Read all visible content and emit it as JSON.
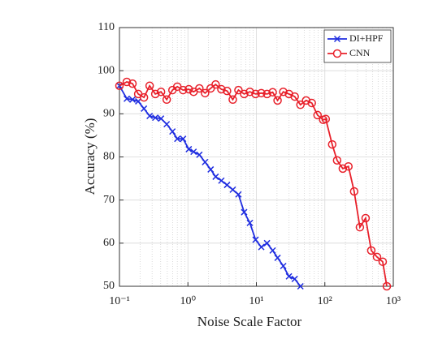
{
  "chart_data": {
    "type": "line",
    "xlabel": "Noise Scale Factor",
    "ylabel": "Accuracy (%)",
    "log_x": true,
    "grid": true,
    "legend": "upper right",
    "xlim": [
      0.1,
      1000
    ],
    "xticks": [
      {
        "value": 0.1,
        "label": "10⁻¹"
      },
      {
        "value": 1,
        "label": "10⁰"
      },
      {
        "value": 10,
        "label": "10¹"
      },
      {
        "value": 100,
        "label": "10²"
      },
      {
        "value": 1000,
        "label": "10³"
      }
    ],
    "ylim": [
      50,
      110
    ],
    "yticks": [
      50,
      60,
      70,
      80,
      90,
      100,
      110
    ],
    "x": [
      0.1,
      0.128,
      0.155,
      0.188,
      0.228,
      0.276,
      0.334,
      0.405,
      0.49,
      0.594,
      0.7,
      0.85,
      1.03,
      1.21,
      1.47,
      1.78,
      2.15,
      2.54,
      3.08,
      3.73,
      4.52,
      5.47,
      6.63,
      8.03,
      9.73,
      11.8,
      14.3,
      17.3,
      20.4,
      24.7,
      29.9,
      36.3,
      44,
      53.3,
      64.5,
      78.2,
      94.7,
      103,
      128,
      151,
      183,
      221,
      268,
      325,
      394,
      477,
      578,
      700,
      804
    ],
    "series": [
      {
        "name": "DI+HPF",
        "color": "#1f2de0",
        "marker": "x",
        "values": [
          96.5,
          93.5,
          93.3,
          92.9,
          91.2,
          89.5,
          89.1,
          88.9,
          87.6,
          85.9,
          84.2,
          84.2,
          81.8,
          81.2,
          80.5,
          78.8,
          77.1,
          75.4,
          74.5,
          73.5,
          72.4,
          71.3,
          67.2,
          64.7,
          60.8,
          59.1,
          60.0,
          58.3,
          56.6,
          54.7,
          52.3,
          51.7,
          50,
          null,
          null,
          null,
          null,
          null,
          null,
          null,
          null,
          null,
          null,
          null,
          null,
          null,
          null,
          null,
          null
        ]
      },
      {
        "name": "CNN",
        "color": "#e8202a",
        "marker": "o",
        "values": [
          96.5,
          97.4,
          97.0,
          94.6,
          93.8,
          96.5,
          94.6,
          95.1,
          93.3,
          95.5,
          96.3,
          95.5,
          95.7,
          95.1,
          95.9,
          94.8,
          95.9,
          96.8,
          95.7,
          95.3,
          93.3,
          95.5,
          94.6,
          95.1,
          94.6,
          94.8,
          94.6,
          95.0,
          93.1,
          95.1,
          94.6,
          94.0,
          92.1,
          93.1,
          92.5,
          89.7,
          88.6,
          88.8,
          82.9,
          79.2,
          77.3,
          77.8,
          72.0,
          63.7,
          65.8,
          58.3,
          56.8,
          55.7,
          50
        ]
      }
    ]
  }
}
